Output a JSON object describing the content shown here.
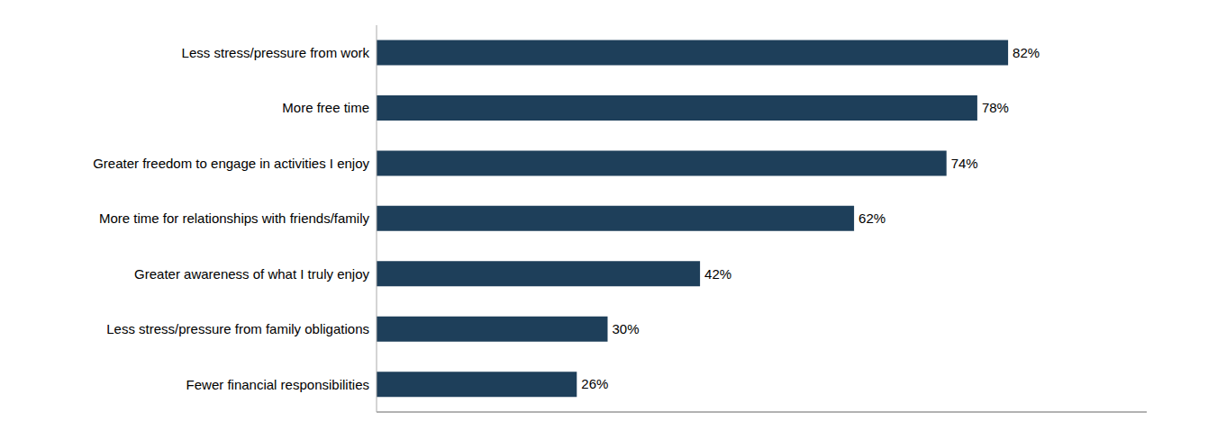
{
  "chart_data": {
    "type": "bar",
    "orientation": "horizontal",
    "categories": [
      "Fewer financial responsibilities",
      "Less stress/pressure from family obligations",
      "Greater awareness of what I truly enjoy",
      "More time for relationships with friends/family",
      "Greater freedom to engage in activities I enjoy",
      "More free time",
      "Less stress/pressure from work"
    ],
    "values": [
      26,
      30,
      42,
      62,
      74,
      78,
      82
    ],
    "value_labels": [
      "26%",
      "30%",
      "42%",
      "62%",
      "74%",
      "78%",
      "82%"
    ],
    "data_labels": true,
    "color": "#1e3f5a",
    "xlim": [
      0,
      100
    ],
    "tick_labels": "y",
    "grid": false
  }
}
